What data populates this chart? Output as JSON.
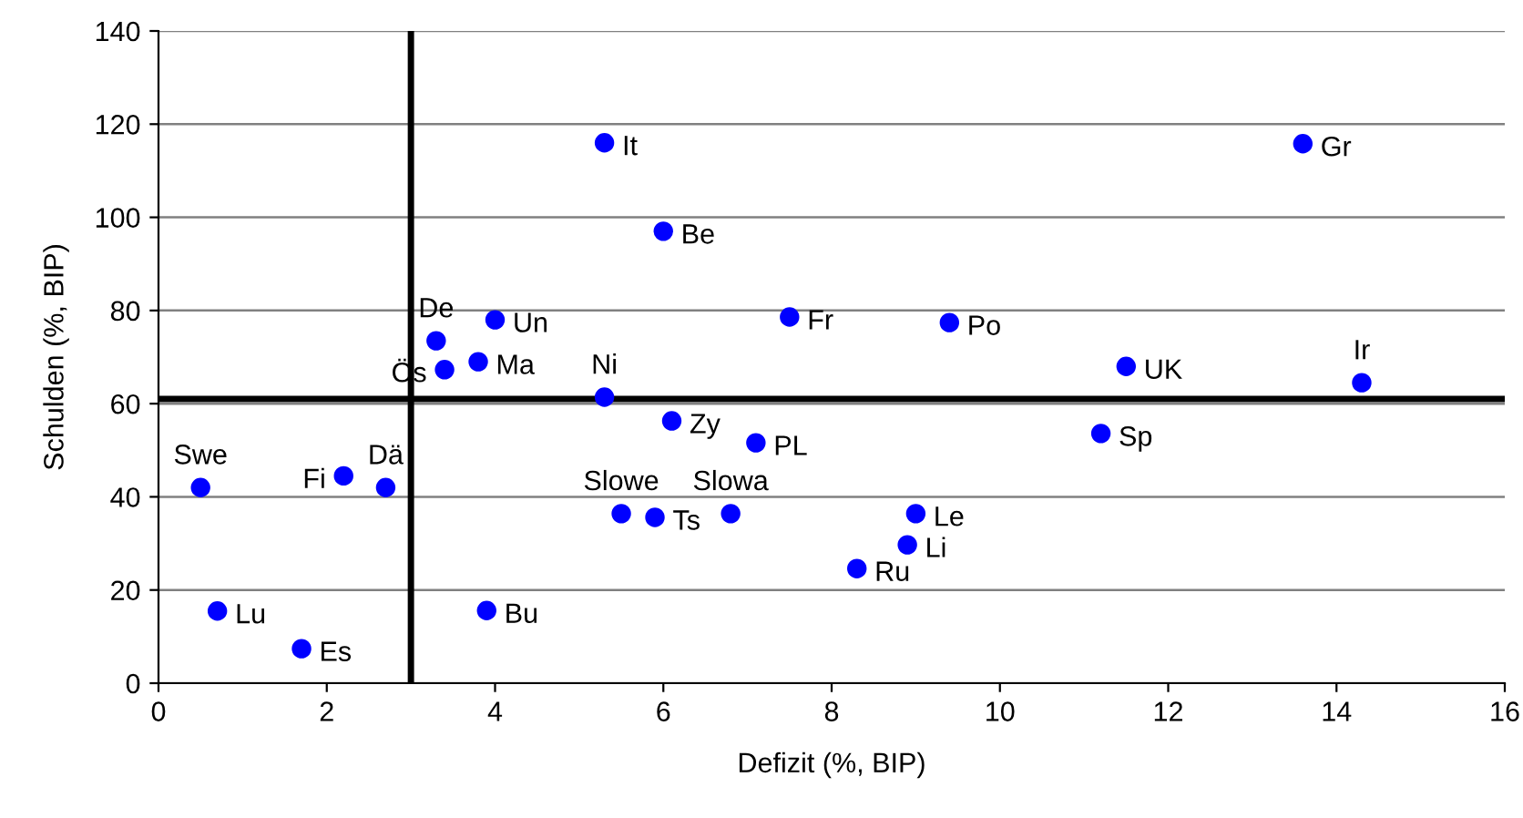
{
  "chart_data": {
    "type": "scatter",
    "xlabel": "Defizit (%, BIP)",
    "ylabel": "Schulden (%, BIP)",
    "x": [
      0.5,
      0.7,
      1.7,
      2.2,
      2.7,
      3.3,
      3.4,
      3.8,
      4.0,
      3.9,
      5.3,
      6.0,
      5.3,
      6.1,
      5.5,
      5.9,
      6.8,
      7.1,
      7.5,
      9.4,
      8.3,
      8.9,
      9.0,
      11.2,
      11.5,
      13.6,
      14.3
    ],
    "series": [
      {
        "color": "#0000ff",
        "values": [
          42,
          15.5,
          7.4,
          44.5,
          42,
          73.5,
          67.3,
          69,
          78,
          15.6,
          116,
          97,
          61.4,
          56.3,
          36.4,
          35.6,
          36.4,
          51.6,
          78.6,
          77.4,
          24.6,
          29.7,
          36.4,
          53.6,
          68,
          115.8,
          64.5
        ]
      }
    ],
    "annotations": [
      {
        "text": "Swe",
        "x": 0.5,
        "y": 42
      },
      {
        "text": "Lu",
        "x": 0.7,
        "y": 15.5
      },
      {
        "text": "Es",
        "x": 1.7,
        "y": 7.4
      },
      {
        "text": "Fi",
        "x": 2.2,
        "y": 44.5
      },
      {
        "text": "Dä",
        "x": 2.7,
        "y": 42
      },
      {
        "text": "De",
        "x": 3.3,
        "y": 73.5
      },
      {
        "text": "Ös",
        "x": 3.4,
        "y": 67.3
      },
      {
        "text": "Ma",
        "x": 3.8,
        "y": 69
      },
      {
        "text": "Un",
        "x": 4.0,
        "y": 78
      },
      {
        "text": "Bu",
        "x": 3.9,
        "y": 15.6
      },
      {
        "text": "It",
        "x": 5.3,
        "y": 116
      },
      {
        "text": "Be",
        "x": 6.0,
        "y": 97
      },
      {
        "text": "Ni",
        "x": 5.3,
        "y": 61.4
      },
      {
        "text": "Zy",
        "x": 6.1,
        "y": 56.3
      },
      {
        "text": "Slowe",
        "x": 5.5,
        "y": 36.4
      },
      {
        "text": "Ts",
        "x": 5.9,
        "y": 35.6
      },
      {
        "text": "Slowa",
        "x": 6.8,
        "y": 36.4
      },
      {
        "text": "PL",
        "x": 7.1,
        "y": 51.6
      },
      {
        "text": "Fr",
        "x": 7.5,
        "y": 78.6
      },
      {
        "text": "Po",
        "x": 9.4,
        "y": 77.4
      },
      {
        "text": "Ru",
        "x": 8.3,
        "y": 24.6
      },
      {
        "text": "Li",
        "x": 8.9,
        "y": 29.7
      },
      {
        "text": "Le",
        "x": 9.0,
        "y": 36.4
      },
      {
        "text": "Sp",
        "x": 11.2,
        "y": 53.6
      },
      {
        "text": "UK",
        "x": 11.5,
        "y": 68
      },
      {
        "text": "Gr",
        "x": 13.6,
        "y": 115.8
      },
      {
        "text": "Ir",
        "x": 14.3,
        "y": 64.5
      }
    ],
    "ref_lines": [
      {
        "axis": "x",
        "value": 3,
        "color": "#000000"
      },
      {
        "axis": "y",
        "value": 61,
        "color": "#000000"
      }
    ],
    "xlim": [
      0,
      16
    ],
    "xticks": [
      0,
      2,
      4,
      6,
      8,
      10,
      12,
      14,
      16
    ],
    "ylim": [
      0,
      140
    ],
    "yticks": [
      0,
      20,
      40,
      60,
      80,
      100,
      120,
      140
    ],
    "grid": "y",
    "marker": "circle",
    "legend": false
  }
}
